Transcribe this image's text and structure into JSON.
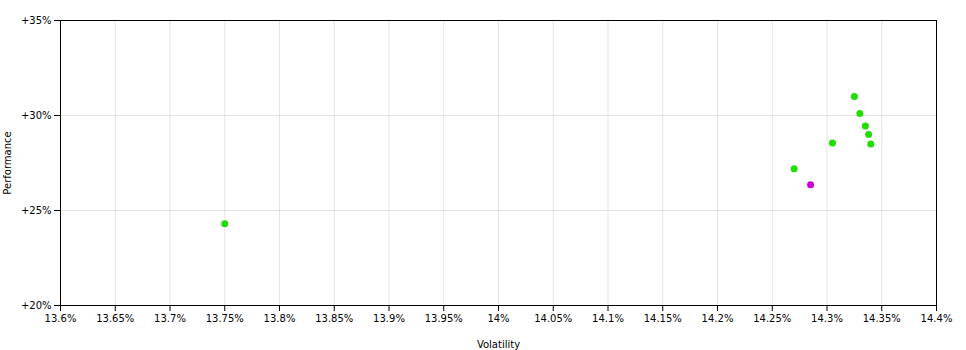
{
  "chart_data": {
    "type": "scatter",
    "xlabel": "Volatility",
    "ylabel": "Performance",
    "xlim": [
      13.6,
      14.4
    ],
    "ylim": [
      20,
      35
    ],
    "xticks": [
      {
        "value": 13.6,
        "label": "13.6%"
      },
      {
        "value": 13.65,
        "label": "13.65%"
      },
      {
        "value": 13.7,
        "label": "13.7%"
      },
      {
        "value": 13.75,
        "label": "13.75%"
      },
      {
        "value": 13.8,
        "label": "13.8%"
      },
      {
        "value": 13.85,
        "label": "13.85%"
      },
      {
        "value": 13.9,
        "label": "13.9%"
      },
      {
        "value": 13.95,
        "label": "13.95%"
      },
      {
        "value": 14,
        "label": "14%"
      },
      {
        "value": 14.05,
        "label": "14.05%"
      },
      {
        "value": 14.1,
        "label": "14.1%"
      },
      {
        "value": 14.15,
        "label": "14.15%"
      },
      {
        "value": 14.2,
        "label": "14.2%"
      },
      {
        "value": 14.25,
        "label": "14.25%"
      },
      {
        "value": 14.3,
        "label": "14.3%"
      },
      {
        "value": 14.35,
        "label": "14.35%"
      },
      {
        "value": 14.4,
        "label": "14.4%"
      }
    ],
    "yticks": [
      {
        "value": 20,
        "label": "+20%"
      },
      {
        "value": 25,
        "label": "+25%"
      },
      {
        "value": 30,
        "label": "+30%"
      },
      {
        "value": 35,
        "label": "+35%"
      }
    ],
    "grid": true,
    "series": [
      {
        "color": "#22dd00",
        "x": [
          13.75,
          14.27,
          14.305,
          14.325,
          14.33,
          14.335,
          14.338,
          14.34
        ],
        "values": [
          24.3,
          27.2,
          28.55,
          31.0,
          30.1,
          29.45,
          29.0,
          28.5
        ]
      },
      {
        "color": "#cc00cc",
        "x": [
          14.285
        ],
        "values": [
          26.35
        ]
      }
    ]
  }
}
